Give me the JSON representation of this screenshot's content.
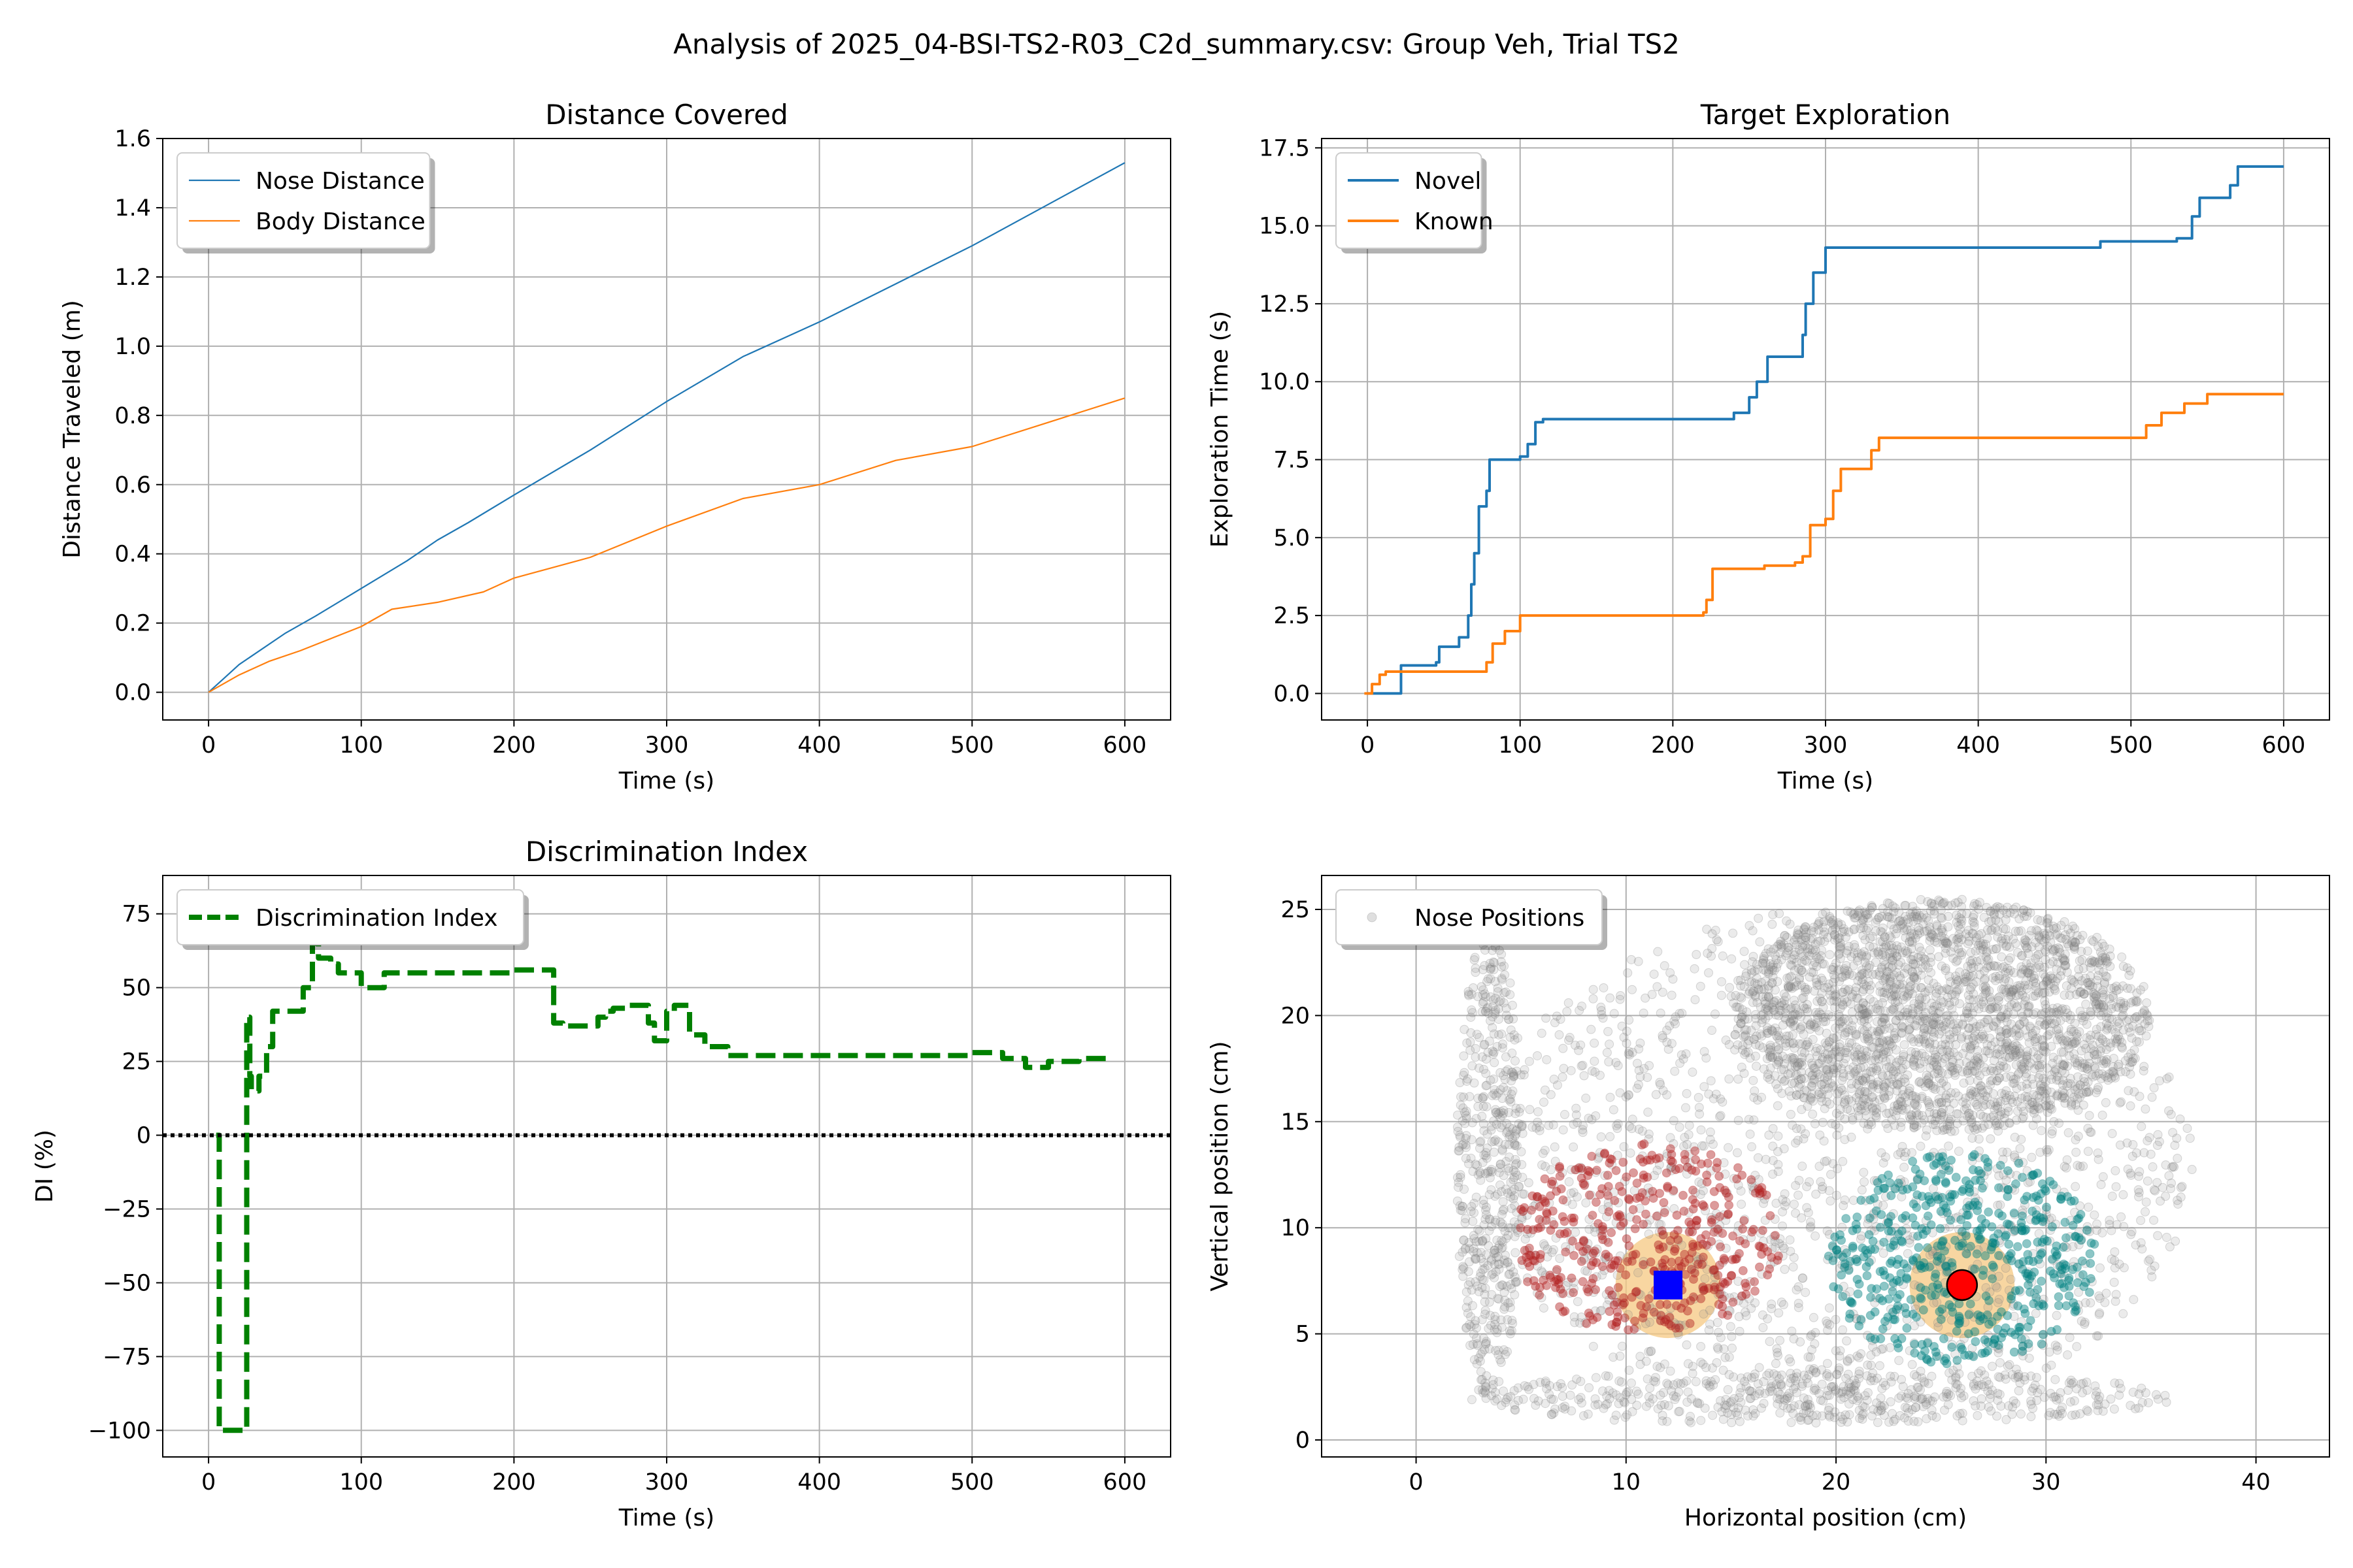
{
  "figure": {
    "suptitle": "Analysis of 2025_04-BSI-TS2-R03_C2d_summary.csv: Group Veh, Trial TS2"
  },
  "chart_data": [
    {
      "id": "distance",
      "type": "line",
      "title": "Distance Covered",
      "xlabel": "Time (s)",
      "ylabel": "Distance Traveled (m)",
      "xlim": [
        -30,
        630
      ],
      "ylim": [
        -0.08,
        1.6
      ],
      "xticks": [
        0,
        100,
        200,
        300,
        400,
        500,
        600
      ],
      "yticks": [
        0.0,
        0.2,
        0.4,
        0.6,
        0.8,
        1.0,
        1.2,
        1.4,
        1.6
      ],
      "ytick_format": "fixed1",
      "grid": true,
      "legend": "upper-left",
      "series": [
        {
          "name": "Nose Distance",
          "color": "#1f77b4",
          "width": 2.2,
          "x": [
            0,
            10,
            20,
            30,
            50,
            70,
            100,
            130,
            150,
            170,
            200,
            250,
            300,
            350,
            400,
            450,
            500,
            550,
            600
          ],
          "y": [
            0,
            0.04,
            0.08,
            0.11,
            0.17,
            0.22,
            0.3,
            0.38,
            0.44,
            0.49,
            0.57,
            0.7,
            0.84,
            0.97,
            1.07,
            1.18,
            1.29,
            1.41,
            1.53
          ]
        },
        {
          "name": "Body Distance",
          "color": "#ff7f0e",
          "width": 2.2,
          "x": [
            0,
            20,
            40,
            60,
            100,
            120,
            150,
            180,
            200,
            250,
            300,
            350,
            400,
            450,
            500,
            550,
            600
          ],
          "y": [
            0,
            0.05,
            0.09,
            0.12,
            0.19,
            0.24,
            0.26,
            0.29,
            0.33,
            0.39,
            0.48,
            0.56,
            0.6,
            0.67,
            0.71,
            0.78,
            0.85
          ]
        }
      ]
    },
    {
      "id": "exploration",
      "type": "line",
      "title": "Target Exploration",
      "xlabel": "Time (s)",
      "ylabel": "Exploration Time (s)",
      "xlim": [
        -30,
        630
      ],
      "ylim": [
        -0.85,
        17.8
      ],
      "xticks": [
        0,
        100,
        200,
        300,
        400,
        500,
        600
      ],
      "yticks": [
        0.0,
        2.5,
        5.0,
        7.5,
        10.0,
        12.5,
        15.0,
        17.5
      ],
      "ytick_format": "fixed1",
      "grid": true,
      "legend": "upper-left",
      "series": [
        {
          "name": "Novel",
          "color": "#1f77b4",
          "width": 4,
          "step": true,
          "x": [
            0,
            20,
            22,
            28,
            45,
            47,
            60,
            65,
            66,
            68,
            70,
            73,
            78,
            80,
            85,
            95,
            100,
            105,
            110,
            115,
            200,
            240,
            250,
            255,
            262,
            270,
            285,
            287,
            292,
            300,
            400,
            480,
            530,
            540,
            545,
            560,
            565,
            570,
            600
          ],
          "y": [
            0,
            0,
            0.9,
            0.9,
            1.0,
            1.5,
            1.8,
            1.8,
            2.5,
            3.5,
            4.5,
            6.0,
            6.5,
            7.5,
            7.5,
            7.5,
            7.6,
            8.0,
            8.7,
            8.8,
            8.8,
            9.0,
            9.5,
            10.0,
            10.8,
            10.8,
            11.5,
            12.5,
            13.5,
            14.3,
            14.3,
            14.5,
            14.6,
            15.3,
            15.9,
            15.9,
            16.3,
            16.9,
            16.9
          ]
        },
        {
          "name": "Known",
          "color": "#ff7f0e",
          "width": 4,
          "step": true,
          "x": [
            -2,
            3,
            8,
            12,
            75,
            78,
            82,
            90,
            100,
            210,
            220,
            222,
            226,
            260,
            280,
            285,
            290,
            300,
            305,
            310,
            330,
            335,
            420,
            500,
            510,
            520,
            530,
            535,
            550,
            600
          ],
          "y": [
            0,
            0.3,
            0.6,
            0.7,
            0.7,
            1.0,
            1.6,
            2.0,
            2.5,
            2.5,
            2.6,
            3.0,
            4.0,
            4.1,
            4.2,
            4.4,
            5.4,
            5.6,
            6.5,
            7.2,
            7.8,
            8.2,
            8.2,
            8.2,
            8.6,
            9.0,
            9.0,
            9.3,
            9.6,
            9.6
          ]
        }
      ]
    },
    {
      "id": "di",
      "type": "line",
      "title": "Discrimination Index",
      "xlabel": "Time (s)",
      "ylabel": "DI (%)",
      "xlim": [
        -30,
        630
      ],
      "ylim": [
        -109,
        88
      ],
      "xticks": [
        0,
        100,
        200,
        300,
        400,
        500,
        600
      ],
      "yticks": [
        -100,
        -75,
        -50,
        -25,
        0,
        25,
        50,
        75
      ],
      "ytick_format": "unicode-minus",
      "grid": true,
      "legend": "upper-left",
      "series": [
        {
          "name": "Discrimination Index",
          "color": "#008000",
          "width": 8,
          "dash": "30,12",
          "step": true,
          "x": [
            5,
            7,
            22,
            25,
            27,
            28,
            33,
            38,
            42,
            50,
            55,
            62,
            68,
            72,
            80,
            85,
            100,
            115,
            200,
            222,
            226,
            232,
            255,
            260,
            265,
            275,
            285,
            288,
            292,
            300,
            305,
            315,
            325,
            340,
            400,
            450,
            480,
            500,
            520,
            535,
            550,
            570,
            590
          ],
          "y": [
            0,
            -100,
            -100,
            40,
            20,
            15,
            20,
            30,
            42,
            42,
            42,
            50,
            65,
            60,
            58,
            55,
            50,
            55,
            56,
            56,
            38,
            37,
            40,
            42,
            43,
            44,
            44,
            38,
            32,
            42,
            44,
            34,
            30,
            27,
            27,
            27,
            27,
            28,
            26,
            23,
            25,
            26,
            27
          ]
        },
        {
          "name": "",
          "color": "#000000",
          "width": 6,
          "dash": "6,6",
          "x": [
            -30,
            630
          ],
          "y": [
            0,
            0
          ]
        }
      ]
    },
    {
      "id": "positions",
      "type": "scatter",
      "title": "",
      "xlabel": "Horizontal position (cm)",
      "ylabel": "Vertical position (cm)",
      "xlim": [
        -4.5,
        43.5
      ],
      "ylim": [
        -0.8,
        26.6
      ],
      "xticks": [
        0,
        10,
        20,
        30,
        40
      ],
      "yticks": [
        0,
        5,
        10,
        15,
        20,
        25
      ],
      "ytick_format": "int",
      "grid": true,
      "legend": "upper-left",
      "series": [
        {
          "name": "Nose Positions",
          "color": "#808080"
        }
      ],
      "zones": [
        {
          "cx": 12,
          "cy": 7.3,
          "r": 2.5,
          "color": "#f5c882"
        },
        {
          "cx": 26,
          "cy": 7.3,
          "r": 2.5,
          "color": "#f5c882"
        }
      ],
      "regions": [
        {
          "cx": 25,
          "cy": 20,
          "rx": 10,
          "ry": 5.5,
          "color": "#808080",
          "n": 2200
        },
        {
          "cx": 20,
          "cy": 13,
          "rx": 17,
          "ry": 12,
          "color": "#808080",
          "n": 1800
        },
        {
          "cx": 3.5,
          "cy": 13,
          "rx": 1.6,
          "ry": 11,
          "color": "#808080",
          "n": 500
        },
        {
          "cx": 19,
          "cy": 2,
          "rx": 17,
          "ry": 1.3,
          "color": "#808080",
          "n": 500
        },
        {
          "cx": 11,
          "cy": 9.5,
          "rx": 6.5,
          "ry": 4.5,
          "color": "#b22222",
          "n": 420
        },
        {
          "cx": 26,
          "cy": 8.5,
          "rx": 6.5,
          "ry": 5,
          "color": "#008080",
          "n": 520
        }
      ],
      "markers": [
        {
          "shape": "square",
          "x": 12,
          "y": 7.3,
          "color": "#0000ff"
        },
        {
          "shape": "circle",
          "x": 26,
          "y": 7.3,
          "color": "#ff0000"
        }
      ]
    }
  ]
}
